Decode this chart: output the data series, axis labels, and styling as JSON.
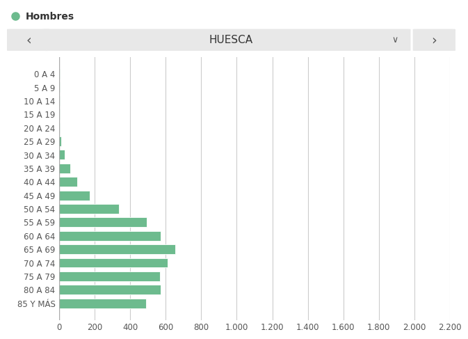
{
  "categories": [
    "0 A 4",
    "5 A 9",
    "10 A 14",
    "15 A 19",
    "20 A 24",
    "25 A 29",
    "30 A 34",
    "35 A 39",
    "40 A 44",
    "45 A 49",
    "50 A 54",
    "55 A 59",
    "60 A 64",
    "65 A 69",
    "70 A 74",
    "75 A 79",
    "80 A 84",
    "85 Y MÁS"
  ],
  "values": [
    2,
    5,
    5,
    5,
    5,
    10,
    30,
    62,
    100,
    172,
    335,
    492,
    572,
    652,
    612,
    567,
    572,
    490
  ],
  "bar_color": "#6dbb8e",
  "background_color": "#ffffff",
  "legend_label": "Hombres",
  "legend_dot_color": "#6dbb8e",
  "location_label": "HUESCA",
  "xlim": [
    0,
    2200
  ],
  "xticks": [
    0,
    200,
    400,
    600,
    800,
    1000,
    1200,
    1400,
    1600,
    1800,
    2000,
    2200
  ],
  "grid_color": "#cccccc",
  "axis_label_color": "#555555",
  "bar_height": 0.72,
  "nav_bg_color": "#e8e8e8",
  "nav_text_color": "#555555",
  "font_size_ticks": 8.5,
  "font_size_legend": 10,
  "font_size_nav": 11
}
